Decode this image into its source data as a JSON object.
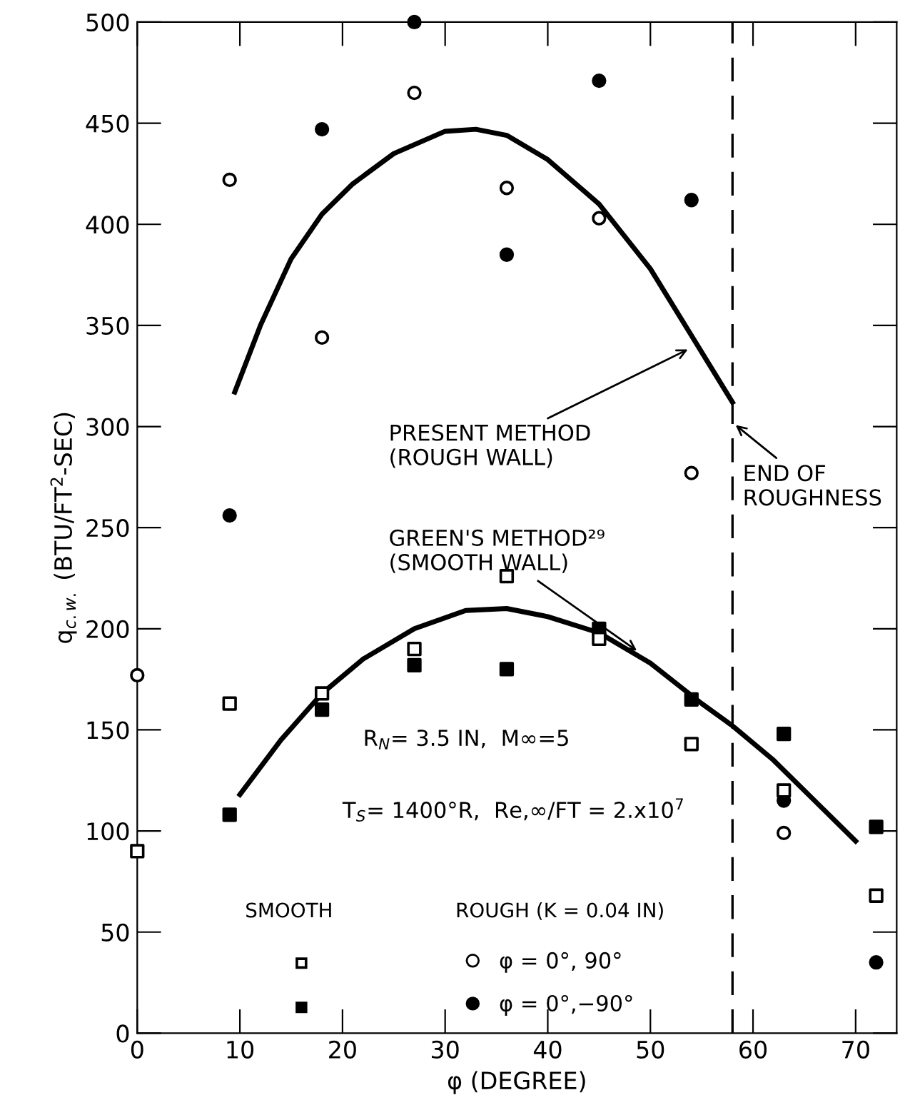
{
  "chart_data": {
    "type": "scatter",
    "xlabel": "φ (DEGREE)",
    "ylabel": "q$_{c.w.}$ (BTU/FT$^{2}$-SEC)",
    "xlim": [
      0,
      74
    ],
    "xticks": [
      0,
      10,
      20,
      30,
      40,
      50,
      60,
      70
    ],
    "ylim": [
      0,
      500
    ],
    "yticks": [
      0,
      50,
      100,
      150,
      200,
      250,
      300,
      350,
      400,
      450,
      500
    ],
    "grid": false,
    "legend": "bottom",
    "series": [
      {
        "marker": "square",
        "color": "#000000",
        "x": [
          0,
          9,
          18,
          27,
          36,
          45,
          54,
          63,
          72
        ],
        "values": [
          90,
          163,
          168,
          190,
          226,
          195,
          143,
          120,
          68
        ]
      },
      {
        "marker": "square",
        "color": "#000000",
        "x": [
          9,
          18,
          27,
          36,
          45,
          54,
          63,
          72
        ],
        "values": [
          108,
          160,
          182,
          180,
          200,
          165,
          148,
          102
        ]
      },
      {
        "marker": "circle",
        "color": "#000000",
        "name": "φ = 0°, 90°",
        "x": [
          0,
          9,
          18,
          27,
          36,
          45,
          54,
          63
        ],
        "values": [
          177,
          422,
          344,
          465,
          418,
          403,
          277,
          99
        ]
      },
      {
        "marker": "circle",
        "color": "#000000",
        "name": "φ = 0°,−90°",
        "x": [
          9,
          18,
          27,
          36,
          45,
          54,
          63,
          72
        ],
        "values": [
          256,
          447,
          500,
          385,
          471,
          412,
          115,
          35
        ]
      },
      {
        "type": "line",
        "marker": "none",
        "line_style": "solid",
        "color": "#000000",
        "x": [
          9.5,
          12,
          15,
          18,
          21,
          25,
          30,
          33,
          36,
          40,
          45,
          50,
          54,
          58
        ],
        "values": [
          317,
          350,
          383,
          405,
          420,
          435,
          446,
          447,
          444,
          432,
          410,
          378,
          345,
          312
        ]
      },
      {
        "type": "line",
        "marker": "none",
        "line_style": "solid",
        "color": "#000000",
        "x": [
          10,
          14,
          18,
          22,
          27,
          32,
          36,
          40,
          45,
          50,
          55,
          58,
          62,
          66,
          70
        ],
        "values": [
          118,
          145,
          168,
          185,
          200,
          209,
          210,
          206,
          198,
          183,
          163,
          152,
          135,
          115,
          95
        ]
      }
    ],
    "ref_lines": [
      {
        "axis": "x",
        "value": 58,
        "label": "END OF\nROUGHNESS",
        "color": "#000000",
        "line_style": "dashed"
      }
    ],
    "annotations": [
      {
        "text": "PRESENT METHOD\n(ROUGH WALL)",
        "x": 54,
        "y": 339
      },
      {
        "text": "GREEN'S METHOD²⁹\n(SMOOTH WALL)",
        "x": 49,
        "y": 188
      },
      "R$_{N}$= 3.5 IN,  M∞=5",
      "T$_{S}$= 1400°R,  Re,∞/FT = 2.x10$^{7}$",
      "SMOOTH",
      "ROUGH (K = 0.04 IN)"
    ]
  }
}
